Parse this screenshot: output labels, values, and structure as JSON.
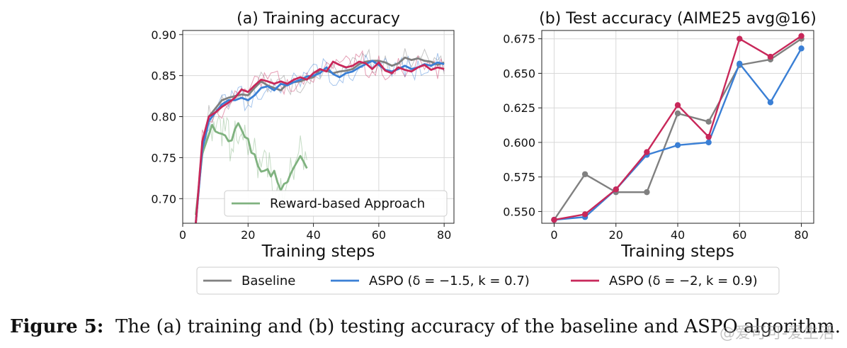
{
  "chart_data": [
    {
      "type": "line",
      "title": "(a) Training accuracy",
      "xlabel": "Training steps",
      "ylabel": "",
      "xlim": [
        0,
        83
      ],
      "ylim": [
        0.67,
        0.905
      ],
      "xticks": [
        0,
        20,
        40,
        60,
        80
      ],
      "yticks": [
        0.7,
        0.75,
        0.8,
        0.85,
        0.9
      ],
      "grid": true,
      "legend_position": "bottom-right",
      "series": [
        {
          "name": "Reward-based Approach",
          "color": "#7fb27f",
          "x": [
            4,
            6,
            8,
            9,
            10,
            11,
            12,
            13,
            14,
            15,
            16,
            17,
            18,
            19,
            20,
            21,
            22,
            23,
            24,
            25,
            26,
            27,
            28,
            29,
            30,
            31,
            32,
            33,
            34,
            35,
            36,
            37,
            38
          ],
          "y": [
            0.68,
            0.755,
            0.778,
            0.79,
            0.782,
            0.78,
            0.779,
            0.777,
            0.77,
            0.771,
            0.785,
            0.792,
            0.784,
            0.775,
            0.773,
            0.756,
            0.754,
            0.74,
            0.733,
            0.734,
            0.736,
            0.727,
            0.734,
            0.72,
            0.71,
            0.718,
            0.72,
            0.73,
            0.738,
            0.745,
            0.752,
            0.745,
            0.737
          ]
        },
        {
          "name": "Baseline",
          "color": "#808080",
          "x": [
            4,
            6,
            8,
            10,
            12,
            14,
            16,
            18,
            20,
            22,
            24,
            26,
            28,
            30,
            32,
            34,
            36,
            38,
            40,
            42,
            44,
            46,
            48,
            50,
            52,
            54,
            56,
            58,
            60,
            62,
            64,
            66,
            68,
            70,
            72,
            74,
            76,
            78,
            80
          ],
          "y": [
            0.67,
            0.765,
            0.8,
            0.81,
            0.82,
            0.823,
            0.825,
            0.827,
            0.826,
            0.835,
            0.843,
            0.838,
            0.835,
            0.832,
            0.84,
            0.842,
            0.843,
            0.846,
            0.848,
            0.857,
            0.856,
            0.853,
            0.855,
            0.856,
            0.858,
            0.864,
            0.867,
            0.868,
            0.868,
            0.866,
            0.862,
            0.865,
            0.872,
            0.869,
            0.871,
            0.868,
            0.867,
            0.863,
            0.866
          ]
        },
        {
          "name": "ASPO (δ = −1.5, k = 0.7)",
          "color": "#3a7fd5",
          "x": [
            4,
            6,
            8,
            10,
            12,
            14,
            16,
            18,
            20,
            22,
            24,
            26,
            28,
            30,
            32,
            34,
            36,
            38,
            40,
            42,
            44,
            46,
            48,
            50,
            52,
            54,
            56,
            58,
            60,
            62,
            64,
            66,
            68,
            70,
            72,
            74,
            76,
            78,
            80
          ],
          "y": [
            0.67,
            0.76,
            0.795,
            0.805,
            0.815,
            0.82,
            0.82,
            0.823,
            0.82,
            0.826,
            0.835,
            0.837,
            0.832,
            0.84,
            0.838,
            0.842,
            0.845,
            0.849,
            0.85,
            0.853,
            0.86,
            0.852,
            0.848,
            0.853,
            0.855,
            0.86,
            0.864,
            0.868,
            0.863,
            0.857,
            0.855,
            0.858,
            0.862,
            0.858,
            0.86,
            0.864,
            0.862,
            0.866,
            0.864
          ]
        },
        {
          "name": "ASPO (δ = −2, k = 0.9)",
          "color": "#c8285a",
          "x": [
            4,
            6,
            8,
            10,
            12,
            14,
            16,
            18,
            20,
            22,
            24,
            26,
            28,
            30,
            32,
            34,
            36,
            38,
            40,
            42,
            44,
            46,
            48,
            50,
            52,
            54,
            56,
            58,
            60,
            62,
            64,
            66,
            68,
            70,
            72,
            74,
            76,
            78,
            80
          ],
          "y": [
            0.67,
            0.77,
            0.8,
            0.805,
            0.812,
            0.817,
            0.823,
            0.833,
            0.83,
            0.838,
            0.845,
            0.843,
            0.84,
            0.843,
            0.84,
            0.845,
            0.848,
            0.845,
            0.853,
            0.858,
            0.855,
            0.867,
            0.863,
            0.86,
            0.862,
            0.867,
            0.865,
            0.858,
            0.866,
            0.856,
            0.853,
            0.86,
            0.857,
            0.855,
            0.86,
            0.863,
            0.857,
            0.86,
            0.858
          ]
        }
      ]
    },
    {
      "type": "line",
      "title": "(b) Test accuracy (AIME25 avg@16)",
      "xlabel": "Training steps",
      "ylabel": "",
      "xlim": [
        -4,
        84
      ],
      "ylim": [
        0.5415,
        0.681
      ],
      "xticks": [
        0,
        20,
        40,
        60,
        80
      ],
      "yticks": [
        0.55,
        0.575,
        0.6,
        0.625,
        0.65,
        0.675
      ],
      "ytick_labels": [
        "0.550",
        "0.575",
        "0.600",
        "0.625",
        "0.650",
        "0.675"
      ],
      "grid": true,
      "markers": true,
      "series": [
        {
          "name": "Baseline",
          "color": "#808080",
          "x": [
            0,
            10,
            20,
            30,
            40,
            50,
            60,
            70,
            80
          ],
          "y": [
            0.544,
            0.577,
            0.564,
            0.564,
            0.621,
            0.615,
            0.656,
            0.66,
            0.675
          ]
        },
        {
          "name": "ASPO (δ = −1.5, k = 0.7)",
          "color": "#3a7fd5",
          "x": [
            0,
            10,
            20,
            30,
            40,
            50,
            60,
            70,
            80
          ],
          "y": [
            0.544,
            0.546,
            0.566,
            0.591,
            0.598,
            0.6,
            0.657,
            0.629,
            0.668
          ]
        },
        {
          "name": "ASPO (δ = −2, k = 0.9)",
          "color": "#c8285a",
          "x": [
            0,
            10,
            20,
            30,
            40,
            50,
            60,
            70,
            80
          ],
          "y": [
            0.544,
            0.548,
            0.566,
            0.593,
            0.627,
            0.604,
            0.675,
            0.662,
            0.677
          ]
        }
      ]
    }
  ],
  "legend_a": {
    "label": "Reward-based Approach",
    "color": "#7fb27f"
  },
  "shared_legend": [
    {
      "label": "Baseline",
      "color": "#808080"
    },
    {
      "label": "ASPO (δ = −1.5, k = 0.7)",
      "color": "#3a7fd5"
    },
    {
      "label": "ASPO (δ = −2, k = 0.9)",
      "color": "#c8285a"
    }
  ],
  "caption": {
    "label": "Figure 5:",
    "text": "The (a) training and (b) testing accuracy of the baseline and ASPO algorithm."
  },
  "watermark": "@爱可可-爱生活"
}
